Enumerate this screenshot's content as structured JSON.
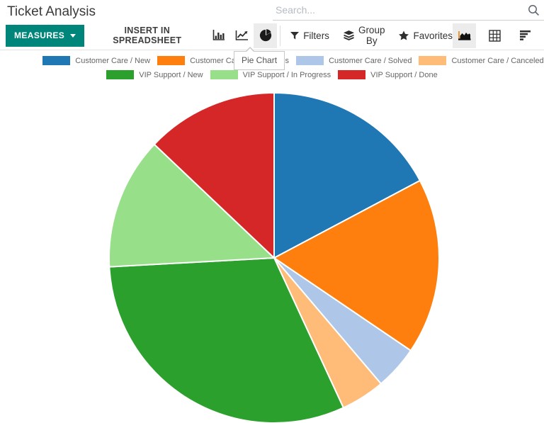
{
  "page": {
    "title": "Ticket Analysis"
  },
  "search": {
    "placeholder": "Search..."
  },
  "toolbar": {
    "measures": "MEASURES",
    "insert_spreadsheet": "INSERT IN SPREADSHEET",
    "filters": "Filters",
    "group_by": "Group By",
    "favorites": "Favorites"
  },
  "tooltip": {
    "text": "Pie Chart"
  },
  "colors": {
    "accent_teal": "#00857B",
    "active_icon_bg": "#ececec",
    "icon_dark": "#2f2f2f",
    "legend_text": "#666666",
    "divider": "#e3e3e3",
    "axis_accent": "#f0962e",
    "slice_stroke": "#ffffff"
  },
  "chart_data": {
    "type": "pie",
    "title": "Ticket Analysis",
    "labels": [
      "Customer Care / New",
      "Customer Care / In Progress",
      "Customer Care / Solved",
      "Customer Care / Canceled",
      "VIP Support / New",
      "VIP Support / In Progress",
      "VIP Support / Done"
    ],
    "values": [
      20,
      20,
      5,
      5,
      36,
      15,
      15
    ],
    "colors": [
      "#1f77b4",
      "#ff7f0e",
      "#aec7e8",
      "#ffbb78",
      "#2ca02c",
      "#98df8a",
      "#d62728"
    ],
    "total": 116,
    "start_angle_deg": 0,
    "direction": "clockwise",
    "legend_position": "top",
    "legend_rows": [
      [
        0,
        1,
        2,
        3
      ],
      [
        4,
        5,
        6
      ]
    ]
  }
}
